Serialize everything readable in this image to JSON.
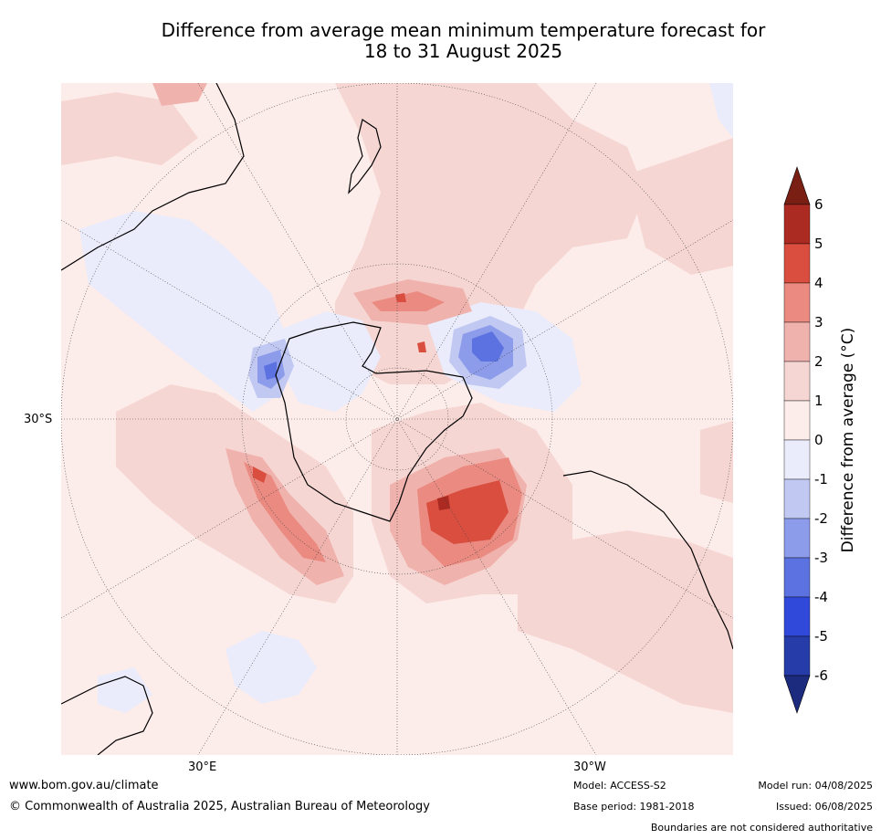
{
  "title_line1": "Difference from average mean minimum temperature forecast for",
  "title_line2": "18 to 31 August 2025",
  "labels": {
    "lon_30e": "30°E",
    "lon_30w": "30°W",
    "lat_30s": "30°S"
  },
  "colorbar": {
    "label": "Difference from average (°C)",
    "ticks": [
      "6",
      "5",
      "4",
      "3",
      "2",
      "1",
      "0",
      "-1",
      "-2",
      "-3",
      "-4",
      "-5",
      "-6"
    ],
    "colors_high_to_low": [
      "#7a1f14",
      "#ab2a22",
      "#d94e3f",
      "#ea8a80",
      "#f0b2ad",
      "#f6d6d3",
      "#fcecea",
      "#eaecfb",
      "#c1c8f2",
      "#8c9cea",
      "#5b72e0",
      "#3149db",
      "#263ca8",
      "#1c2b7e"
    ]
  },
  "footer": {
    "url": "www.bom.gov.au/climate",
    "copyright": "© Commonwealth of Australia 2025, Australian Bureau of Meteorology",
    "model": "Model: ACCESS-S2",
    "base_period": "Base period: 1981-2018",
    "model_run": "Model run: 04/08/2025",
    "issued": "Issued: 06/08/2025",
    "disclaimer": "Boundaries are not considered authoritative"
  }
}
